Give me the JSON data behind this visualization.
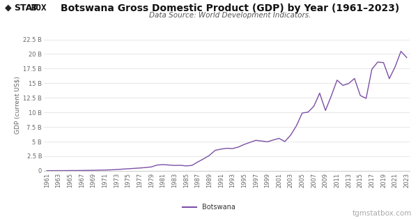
{
  "title": "Botswana Gross Domestic Product (GDP) by Year (1961–2023)",
  "subtitle": "Data Source: World Development Indicators.",
  "ylabel": "GDP (current US$)",
  "legend_label": "Botswana",
  "watermark": "tgmstatbox.com",
  "line_color": "#7b4fa6",
  "background_color": "#ffffff",
  "years": [
    1961,
    1962,
    1963,
    1964,
    1965,
    1966,
    1967,
    1968,
    1969,
    1970,
    1971,
    1972,
    1973,
    1974,
    1975,
    1976,
    1977,
    1978,
    1979,
    1980,
    1981,
    1982,
    1983,
    1984,
    1985,
    1986,
    1987,
    1988,
    1989,
    1990,
    1991,
    1992,
    1993,
    1994,
    1995,
    1996,
    1997,
    1998,
    1999,
    2000,
    2001,
    2002,
    2003,
    2004,
    2005,
    2006,
    2007,
    2008,
    2009,
    2010,
    2011,
    2012,
    2013,
    2014,
    2015,
    2016,
    2017,
    2018,
    2019,
    2020,
    2021,
    2022,
    2023
  ],
  "gdp_billions": [
    0.032,
    0.034,
    0.037,
    0.04,
    0.049,
    0.054,
    0.063,
    0.074,
    0.088,
    0.109,
    0.13,
    0.166,
    0.22,
    0.29,
    0.35,
    0.42,
    0.48,
    0.56,
    0.67,
    0.99,
    1.06,
    1.0,
    0.92,
    0.95,
    0.84,
    0.93,
    1.51,
    2.05,
    2.64,
    3.5,
    3.72,
    3.86,
    3.81,
    4.07,
    4.52,
    4.87,
    5.22,
    5.1,
    4.97,
    5.28,
    5.56,
    5.01,
    6.11,
    7.72,
    9.9,
    10.05,
    11.05,
    13.3,
    10.34,
    12.82,
    15.53,
    14.63,
    14.95,
    15.81,
    12.9,
    12.4,
    17.41,
    18.62,
    18.53,
    15.78,
    17.82,
    20.46,
    19.4
  ],
  "ylim": [
    0,
    22.5
  ],
  "yticks": [
    0,
    2.5,
    5.0,
    7.5,
    10.0,
    12.5,
    15.0,
    17.5,
    20.0,
    22.5
  ],
  "ytick_labels": [
    "0",
    "2.5 B",
    "5 B",
    "7.5 B",
    "10 B",
    "12.5 B",
    "15 B",
    "17.5 B",
    "20 B",
    "22.5 B"
  ],
  "title_fontsize": 10,
  "subtitle_fontsize": 7.5,
  "ylabel_fontsize": 6.5,
  "tick_fontsize": 6,
  "legend_fontsize": 7,
  "watermark_fontsize": 7.5
}
